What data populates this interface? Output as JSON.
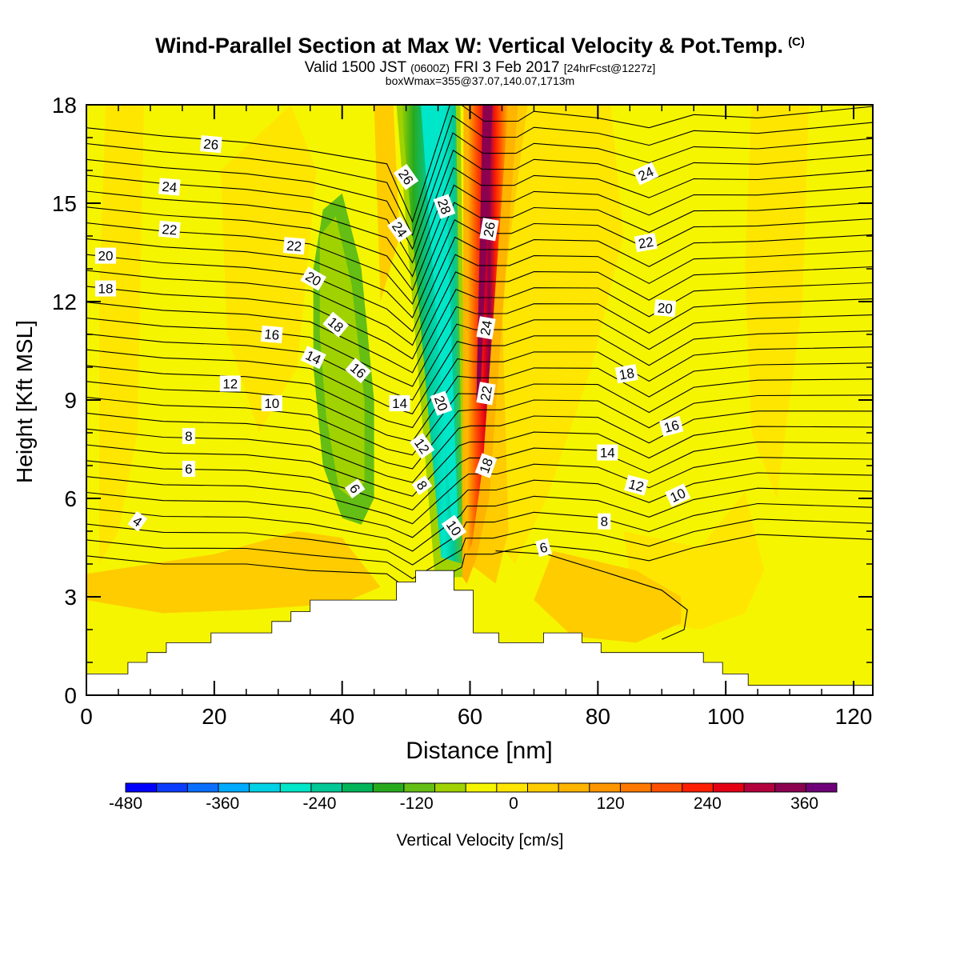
{
  "title": {
    "main": "Wind-Parallel Section at Max W: Vertical Velocity & Pot.Temp.",
    "copyright": "(C)",
    "valid_a": "Valid 1500 JST",
    "valid_b": "(0600Z)",
    "valid_c": "FRI 3 Feb 2017",
    "valid_d": "[24hrFcst@1227z]",
    "box": "boxWmax=355@37.07,140.07,1713m"
  },
  "chart_data": {
    "type": "heatmap",
    "xlabel": "Distance [nm]",
    "ylabel": "Height [Kft MSL]",
    "xlim": [
      0,
      123
    ],
    "ylim": [
      0,
      18
    ],
    "x_ticks": [
      0,
      20,
      40,
      60,
      80,
      100,
      120
    ],
    "y_ticks": [
      0,
      3,
      6,
      9,
      12,
      15,
      18
    ],
    "colorbar": {
      "label": "Vertical Velocity [cm/s]",
      "range": [
        -480,
        400
      ],
      "step": 40,
      "tick_labels": [
        -480,
        -360,
        -240,
        -120,
        0,
        120,
        240,
        360
      ],
      "colors": [
        "#0000ff",
        "#0a3cff",
        "#0a6eff",
        "#00aaff",
        "#00d2e6",
        "#00e6c8",
        "#00c896",
        "#00b45a",
        "#28aa1e",
        "#64be14",
        "#a0d200",
        "#f5f500",
        "#ffe600",
        "#ffcc00",
        "#ffb400",
        "#ff9600",
        "#ff7800",
        "#ff5000",
        "#ff1e00",
        "#e60014",
        "#b4003c",
        "#8c0050",
        "#6e0078"
      ]
    },
    "terrain_kft": [
      [
        0,
        0.65
      ],
      [
        6.5,
        0.65
      ],
      [
        6.5,
        1.0
      ],
      [
        9.5,
        1.0
      ],
      [
        9.5,
        1.3
      ],
      [
        12.5,
        1.3
      ],
      [
        12.5,
        1.6
      ],
      [
        19.5,
        1.6
      ],
      [
        19.5,
        1.9
      ],
      [
        29,
        1.9
      ],
      [
        29,
        2.25
      ],
      [
        32,
        2.25
      ],
      [
        32,
        2.55
      ],
      [
        35,
        2.55
      ],
      [
        35,
        2.9
      ],
      [
        48.5,
        2.9
      ],
      [
        48.5,
        3.45
      ],
      [
        51.5,
        3.45
      ],
      [
        51.5,
        3.8
      ],
      [
        57.5,
        3.8
      ],
      [
        57.5,
        3.2
      ],
      [
        60.5,
        3.2
      ],
      [
        60.5,
        1.9
      ],
      [
        64.5,
        1.9
      ],
      [
        64.5,
        1.6
      ],
      [
        71.5,
        1.6
      ],
      [
        71.5,
        1.9
      ],
      [
        77.5,
        1.9
      ],
      [
        77.5,
        1.6
      ],
      [
        80.5,
        1.6
      ],
      [
        80.5,
        1.3
      ],
      [
        96.5,
        1.3
      ],
      [
        96.5,
        1.0
      ],
      [
        99.5,
        1.0
      ],
      [
        99.5,
        0.65
      ],
      [
        103.5,
        0.65
      ],
      [
        103.5,
        0.3
      ],
      [
        123,
        0.3
      ]
    ],
    "vertical_velocity_features": [
      {
        "name": "downdraft core",
        "x_center_at_4kft": 57,
        "x_center_at_18kft": 55,
        "min_cm_s": -360
      },
      {
        "name": "updraft core",
        "x_center_at_4kft": 60,
        "x_center_at_18kft": 63,
        "max_cm_s": 355
      },
      {
        "name": "weak downdraft band",
        "x_range": [
          36,
          45
        ],
        "y_range": [
          5,
          16
        ],
        "value_cm_s": -80
      }
    ],
    "theta_contours_C": [
      4,
      6,
      8,
      10,
      12,
      14,
      16,
      18,
      20,
      22,
      24,
      26,
      28
    ],
    "contour_labels": [
      {
        "v": "26",
        "x": 19.5,
        "y": 16.8,
        "r": 5
      },
      {
        "v": "24",
        "x": 13,
        "y": 15.5,
        "r": 5
      },
      {
        "v": "22",
        "x": 13,
        "y": 14.2,
        "r": 5
      },
      {
        "v": "22",
        "x": 32.5,
        "y": 13.7,
        "r": 5
      },
      {
        "v": "20",
        "x": 3,
        "y": 13.4,
        "r": 0
      },
      {
        "v": "20",
        "x": 35.5,
        "y": 12.7,
        "r": 30
      },
      {
        "v": "18",
        "x": 3,
        "y": 12.4,
        "r": 0
      },
      {
        "v": "18",
        "x": 39,
        "y": 11.3,
        "r": 40
      },
      {
        "v": "16",
        "x": 29,
        "y": 11.0,
        "r": 5
      },
      {
        "v": "16",
        "x": 42.5,
        "y": 9.9,
        "r": 40
      },
      {
        "v": "14",
        "x": 35.5,
        "y": 10.3,
        "r": 25
      },
      {
        "v": "14",
        "x": 49,
        "y": 8.9,
        "r": 0
      },
      {
        "v": "12",
        "x": 22.5,
        "y": 9.5,
        "r": 0
      },
      {
        "v": "10",
        "x": 29,
        "y": 8.9,
        "r": 0
      },
      {
        "v": "8",
        "x": 16,
        "y": 7.9,
        "r": 0
      },
      {
        "v": "6",
        "x": 16,
        "y": 6.9,
        "r": 0
      },
      {
        "v": "6",
        "x": 42,
        "y": 6.3,
        "r": 55
      },
      {
        "v": "4",
        "x": 8,
        "y": 5.3,
        "r": 35
      },
      {
        "v": "26",
        "x": 50,
        "y": 15.8,
        "r": 55
      },
      {
        "v": "28",
        "x": 56,
        "y": 14.9,
        "r": 70
      },
      {
        "v": "24",
        "x": 49,
        "y": 14.2,
        "r": 55
      },
      {
        "v": "20",
        "x": 55.5,
        "y": 8.9,
        "r": 70
      },
      {
        "v": "12",
        "x": 52.5,
        "y": 7.6,
        "r": 55
      },
      {
        "v": "8",
        "x": 52.5,
        "y": 6.4,
        "r": 55
      },
      {
        "v": "10",
        "x": 57.5,
        "y": 5.1,
        "r": 55
      },
      {
        "v": "26",
        "x": 63,
        "y": 14.2,
        "r": -80
      },
      {
        "v": "24",
        "x": 62.5,
        "y": 11.2,
        "r": -80
      },
      {
        "v": "22",
        "x": 62.5,
        "y": 9.2,
        "r": -80
      },
      {
        "v": "18",
        "x": 62.5,
        "y": 7.0,
        "r": -70
      },
      {
        "v": "24",
        "x": 87.5,
        "y": 15.9,
        "r": -25
      },
      {
        "v": "22",
        "x": 87.5,
        "y": 13.8,
        "r": -10
      },
      {
        "v": "20",
        "x": 90.5,
        "y": 11.8,
        "r": 5
      },
      {
        "v": "18",
        "x": 84.5,
        "y": 9.8,
        "r": -10
      },
      {
        "v": "16",
        "x": 91.5,
        "y": 8.2,
        "r": -15
      },
      {
        "v": "14",
        "x": 81.5,
        "y": 7.4,
        "r": 0
      },
      {
        "v": "12",
        "x": 86,
        "y": 6.4,
        "r": 15
      },
      {
        "v": "10",
        "x": 92.5,
        "y": 6.1,
        "r": -25
      },
      {
        "v": "8",
        "x": 81,
        "y": 5.3,
        "r": 0
      },
      {
        "v": "6",
        "x": 71.5,
        "y": 4.5,
        "r": -15
      }
    ]
  }
}
